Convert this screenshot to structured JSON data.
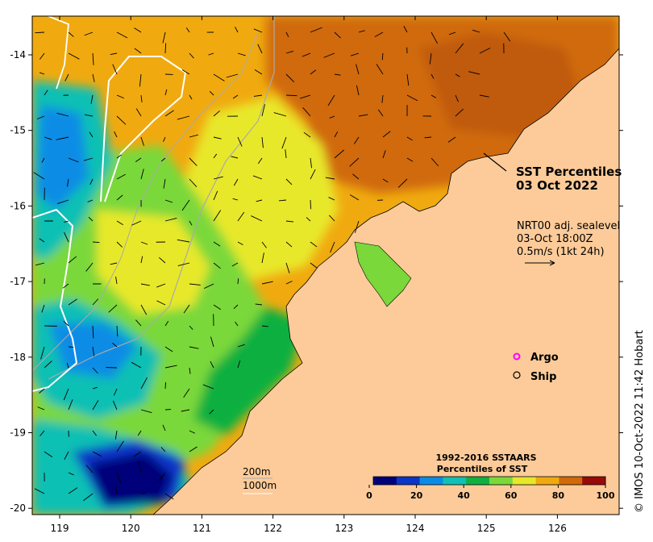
{
  "map": {
    "title_line1": "SST Percentiles",
    "title_line2": "03 Oct 2022",
    "current_info": {
      "line1": "NRT00 adj. sealevel",
      "line2": "03-Oct 18:00Z",
      "line3": "0.5m/s (1kt 24h)"
    },
    "legend": {
      "argo": "Argo",
      "ship": "Ship"
    },
    "depth_labels": [
      "200m",
      "1000m"
    ],
    "credit": "© IMOS 10-Oct-2022 11:42 Hobart",
    "colorbar": {
      "title_line1": "1992-2016 SSTAARS",
      "title_line2": "Percentiles of SST",
      "ticks": [
        "0",
        "20",
        "40",
        "60",
        "80",
        "100"
      ],
      "colors": [
        "#00007a",
        "#0a36c8",
        "#0a8ce6",
        "#10c0b4",
        "#10b040",
        "#7ad83a",
        "#e8e82a",
        "#f0aa10",
        "#d06a0a",
        "#9a0a0a"
      ]
    },
    "lon_ticks": [
      "119",
      "120",
      "121",
      "122",
      "123",
      "124",
      "125",
      "126"
    ],
    "lat_ticks": [
      "-14",
      "-15",
      "-16",
      "-17",
      "-18",
      "-19",
      "-20"
    ],
    "colors": {
      "land": "#fccb99",
      "warm": "#f0aa10",
      "hot": "#d06a0a",
      "mid": "#e8e82a",
      "green": "#7ad83a",
      "teal": "#10c0b4",
      "blue": "#0a8ce6",
      "deep": "#00007a"
    }
  }
}
